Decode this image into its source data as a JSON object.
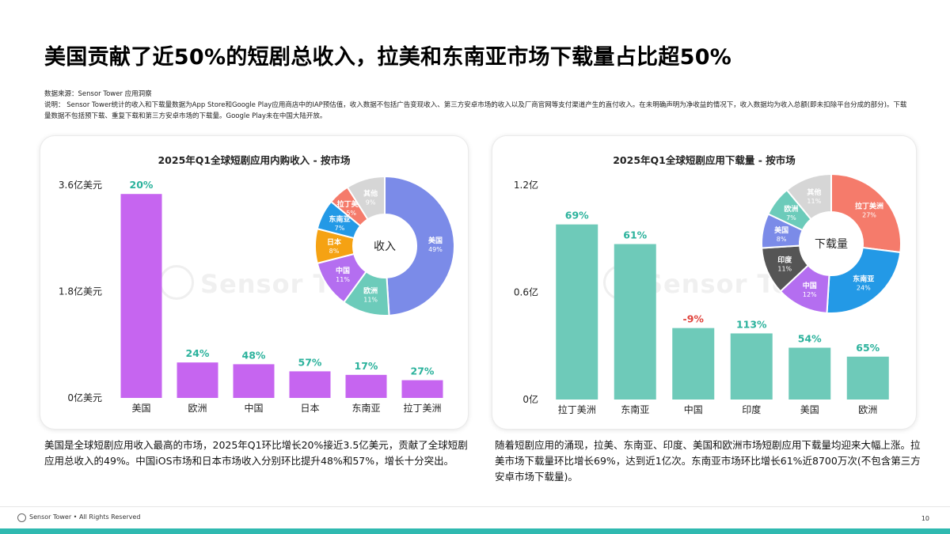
{
  "title": "美国贡献了近50%的短剧总收入，拉美和东南亚市场下载量占比超50%",
  "source": "数据来源：Sensor Tower 应用洞察",
  "note": "说明：  Sensor Tower统计的收入和下载量数据为App Store和Google Play应用商店中的IAP预估值，收入数据不包括广告变现收入、第三方安卓市场的收入以及厂商官网等支付渠道产生的直付收入。在未明确声明为净收益的情况下，收入数据均为收入总额(即未扣除平台分成的部分)。下载量数据不包括预下载、重复下载和第三方安卓市场的下载量。Google Play未在中国大陆开放。",
  "watermark": "Sensor Tower",
  "captions": {
    "left": "美国是全球短剧应用收入最高的市场，2025年Q1环比增长20%接近3.5亿美元，贡献了全球短剧应用总收入的49%。中国iOS市场和日本市场收入分别环比提升48%和57%，增长十分突出。",
    "right": "随着短剧应用的涌现，拉美、东南亚、印度、美国和欧洲市场短剧应用下载量均迎来大幅上涨。拉美市场下载量环比增长69%，达到近1亿次。东南亚市场环比增长61%近8700万次(不包含第三方安卓市场下载量)。"
  },
  "footer": {
    "text": "Sensor Tower • All Rights Reserved",
    "page": "10"
  },
  "chart_data": [
    {
      "type": "bar",
      "title": "2025年Q1全球短剧应用内购收入 - 按市场",
      "categories": [
        "美国",
        "欧洲",
        "中国",
        "日本",
        "东南亚",
        "拉丁美洲"
      ],
      "values": [
        3.45,
        0.6,
        0.57,
        0.45,
        0.39,
        0.3
      ],
      "data_labels": [
        "20%",
        "24%",
        "48%",
        "57%",
        "17%",
        "27%"
      ],
      "yticks": [
        "0亿美元",
        "1.8亿美元",
        "3.6亿美元"
      ],
      "ylim": [
        0,
        3.6
      ],
      "bar_color": "#c665f0",
      "label_color": "#2bb29c",
      "grid": false
    },
    {
      "type": "pie",
      "center_label": "收入",
      "slices": [
        {
          "label": "美国",
          "value": 49,
          "text": "49%",
          "color": "#7b8be8"
        },
        {
          "label": "欧洲",
          "value": 11,
          "text": "11%",
          "color": "#6ccbba"
        },
        {
          "label": "中国",
          "value": 11,
          "text": "11%",
          "color": "#b46ef0"
        },
        {
          "label": "日本",
          "value": 8,
          "text": "8%",
          "color": "#f5a213"
        },
        {
          "label": "东南亚",
          "value": 7,
          "text": "7%",
          "color": "#2399e6"
        },
        {
          "label": "拉丁美洲",
          "value": 5,
          "text": "5%",
          "color": "#f57b6b"
        },
        {
          "label": "其他",
          "value": 9,
          "text": "9%",
          "color": "#d6d6d6"
        }
      ]
    },
    {
      "type": "bar",
      "title": "2025年Q1全球短剧应用下载量 - 按市场",
      "categories": [
        "拉丁美洲",
        "东南亚",
        "中国",
        "印度",
        "美国",
        "欧洲"
      ],
      "values": [
        0.98,
        0.87,
        0.4,
        0.37,
        0.29,
        0.24
      ],
      "data_labels": [
        "69%",
        "61%",
        "-9%",
        "113%",
        "54%",
        "65%"
      ],
      "label_colors": [
        "#2bb29c",
        "#2bb29c",
        "#e0433c",
        "#2bb29c",
        "#2bb29c",
        "#2bb29c"
      ],
      "yticks": [
        "0亿",
        "0.6亿",
        "1.2亿"
      ],
      "ylim": [
        0,
        1.2
      ],
      "bar_color": "#6ecab9",
      "grid": false
    },
    {
      "type": "pie",
      "center_label": "下载量",
      "slices": [
        {
          "label": "拉丁美洲",
          "value": 27,
          "text": "27%",
          "color": "#f57b6b"
        },
        {
          "label": "东南亚",
          "value": 24,
          "text": "24%",
          "color": "#2399e6"
        },
        {
          "label": "中国",
          "value": 12,
          "text": "12%",
          "color": "#b46ef0"
        },
        {
          "label": "印度",
          "value": 11,
          "text": "11%",
          "color": "#555555"
        },
        {
          "label": "美国",
          "value": 8,
          "text": "8%",
          "color": "#7b8be8"
        },
        {
          "label": "欧洲",
          "value": 7,
          "text": "7%",
          "color": "#6ccbba"
        },
        {
          "label": "其他",
          "value": 11,
          "text": "11%",
          "color": "#d6d6d6"
        }
      ]
    }
  ]
}
